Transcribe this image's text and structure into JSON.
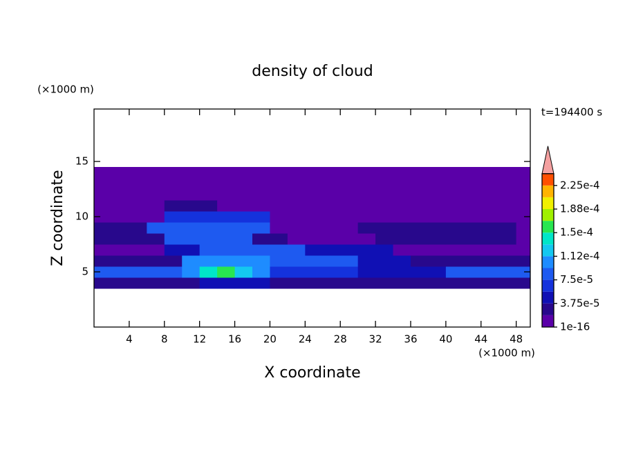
{
  "chart_data": {
    "type": "contour",
    "title": "density of cloud",
    "xlabel": "X coordinate",
    "ylabel": "Z coordinate",
    "xunit": "(×1000 m)",
    "yunit": "(×1000 m)",
    "time_label": "t=194400 s",
    "xlim": [
      0,
      49.6
    ],
    "ylim": [
      0,
      19.75
    ],
    "xticks": [
      4,
      8,
      12,
      16,
      20,
      24,
      28,
      32,
      36,
      40,
      44,
      48
    ],
    "yticks": [
      5,
      10,
      15
    ],
    "x": [
      1,
      3,
      5,
      7,
      9,
      11,
      13,
      15,
      17,
      19,
      21,
      23,
      25,
      27,
      29,
      31,
      33,
      35,
      37,
      39,
      41,
      43,
      45,
      47,
      49
    ],
    "y": [
      4,
      5,
      6,
      7,
      8,
      9,
      10,
      11,
      12,
      13,
      14
    ],
    "z": [
      [
        2e-05,
        2e-05,
        2e-05,
        2e-05,
        2e-05,
        2e-05,
        4e-05,
        4e-05,
        4e-05,
        4e-05,
        2e-05,
        2e-05,
        2e-05,
        2e-05,
        2e-05,
        2e-05,
        2e-05,
        2e-05,
        2e-05,
        2e-05,
        2e-05,
        2e-05,
        2e-05,
        2e-05,
        2e-05
      ],
      [
        8e-05,
        8e-05,
        8e-05,
        8e-05,
        8e-05,
        0.0001,
        0.00014,
        0.00016,
        0.00012,
        0.0001,
        7e-05,
        7e-05,
        7e-05,
        7e-05,
        7e-05,
        5e-05,
        5e-05,
        5e-05,
        5e-05,
        5e-05,
        8e-05,
        8e-05,
        8e-05,
        8e-05,
        8e-05
      ],
      [
        3e-05,
        3e-05,
        3e-05,
        3e-05,
        3e-05,
        0.0001,
        0.0001,
        0.0001,
        0.0001,
        0.0001,
        8e-05,
        8e-05,
        8e-05,
        8e-05,
        8e-05,
        5e-05,
        5e-05,
        5e-05,
        2e-05,
        2e-05,
        2e-05,
        2e-05,
        2e-05,
        2e-05,
        2e-05
      ],
      [
        1e-16,
        1e-16,
        1e-16,
        1e-16,
        5e-05,
        5e-05,
        8e-05,
        8e-05,
        8e-05,
        8e-05,
        8e-05,
        8e-05,
        4e-05,
        4e-05,
        4e-05,
        4e-05,
        4e-05,
        1e-16,
        1e-16,
        1e-16,
        1e-16,
        1e-16,
        1e-16,
        1e-16,
        1e-16
      ],
      [
        2e-05,
        2e-05,
        2e-05,
        2e-05,
        8e-05,
        8e-05,
        8e-05,
        8e-05,
        8e-05,
        3e-05,
        3e-05,
        1e-16,
        1e-16,
        1e-16,
        1e-16,
        1e-16,
        2e-05,
        2e-05,
        2e-05,
        2e-05,
        2e-05,
        2e-05,
        2e-05,
        2e-05,
        1e-16
      ],
      [
        2e-05,
        2e-05,
        2e-05,
        9e-05,
        9e-05,
        9e-05,
        9e-05,
        9e-05,
        9e-05,
        9e-05,
        1e-16,
        1e-16,
        1e-16,
        1e-16,
        1e-16,
        2e-05,
        2e-05,
        2e-05,
        2e-05,
        2e-05,
        2e-05,
        2e-05,
        2e-05,
        2e-05,
        1e-16
      ],
      [
        1e-16,
        1e-16,
        1e-16,
        1e-16,
        7e-05,
        7e-05,
        7e-05,
        7e-05,
        7e-05,
        7e-05,
        1e-16,
        1e-16,
        1e-16,
        1e-16,
        1e-16,
        1e-16,
        1e-16,
        1e-16,
        1e-16,
        1e-16,
        1e-16,
        1e-16,
        1e-16,
        1e-16,
        1e-16
      ],
      [
        1e-16,
        1e-16,
        1e-16,
        1e-16,
        2e-05,
        2e-05,
        2e-05,
        1e-16,
        1e-16,
        1e-16,
        1e-16,
        1e-16,
        1e-16,
        1e-16,
        1e-16,
        1e-16,
        1e-16,
        1e-16,
        1e-16,
        1e-16,
        1e-16,
        1e-16,
        1e-16,
        1e-16,
        1e-16
      ],
      [
        1e-16,
        1e-16,
        1e-16,
        1e-16,
        1e-16,
        1e-16,
        1e-16,
        1e-16,
        1e-16,
        1e-16,
        1e-16,
        1e-16,
        1e-16,
        1e-16,
        1e-16,
        1e-16,
        1e-16,
        1e-16,
        1e-16,
        1e-16,
        1e-16,
        1e-16,
        1e-16,
        1e-16,
        1e-16
      ],
      [
        1e-16,
        1e-16,
        1e-16,
        1e-16,
        1e-16,
        1e-16,
        1e-16,
        1e-16,
        1e-16,
        1e-16,
        1e-16,
        1e-16,
        1e-16,
        1e-16,
        1e-16,
        1e-16,
        1e-16,
        1e-16,
        1e-16,
        1e-16,
        1e-16,
        1e-16,
        1e-16,
        1e-16,
        1e-16
      ],
      [
        1e-16,
        1e-16,
        1e-16,
        1e-16,
        1e-16,
        1e-16,
        1e-16,
        1e-16,
        1e-16,
        1e-16,
        1e-16,
        1e-16,
        1e-16,
        1e-16,
        1e-16,
        1e-16,
        1e-16,
        1e-16,
        1e-16,
        1e-16,
        1e-16,
        1e-16,
        1e-16,
        1e-16,
        1e-16
      ]
    ],
    "levels": [
      1e-16,
      1.875e-05,
      3.75e-05,
      5.625e-05,
      7.5e-05,
      9.375e-05,
      0.0001125,
      0.00013125,
      0.00015,
      0.00016875,
      0.0001875,
      0.00020625,
      0.000225,
      0.00024375
    ],
    "colors": [
      "#5a00a8",
      "#28088c",
      "#1010b4",
      "#1432dc",
      "#1e5af0",
      "#1e8cff",
      "#14c8f0",
      "#00e6c8",
      "#28e650",
      "#a0f000",
      "#f0f000",
      "#ffb400",
      "#ff5000"
    ],
    "extend_color": "#f4a0a0",
    "cticks": [
      {
        "value": 1e-16,
        "label": "1e-16"
      },
      {
        "value": 3.75e-05,
        "label": "3.75e-5"
      },
      {
        "value": 7.5e-05,
        "label": "7.5e-5"
      },
      {
        "value": 0.0001125,
        "label": "1.12e-4"
      },
      {
        "value": 0.00015,
        "label": "1.5e-4"
      },
      {
        "value": 0.0001875,
        "label": "1.88e-4"
      },
      {
        "value": 0.000225,
        "label": "2.25e-4"
      }
    ]
  }
}
